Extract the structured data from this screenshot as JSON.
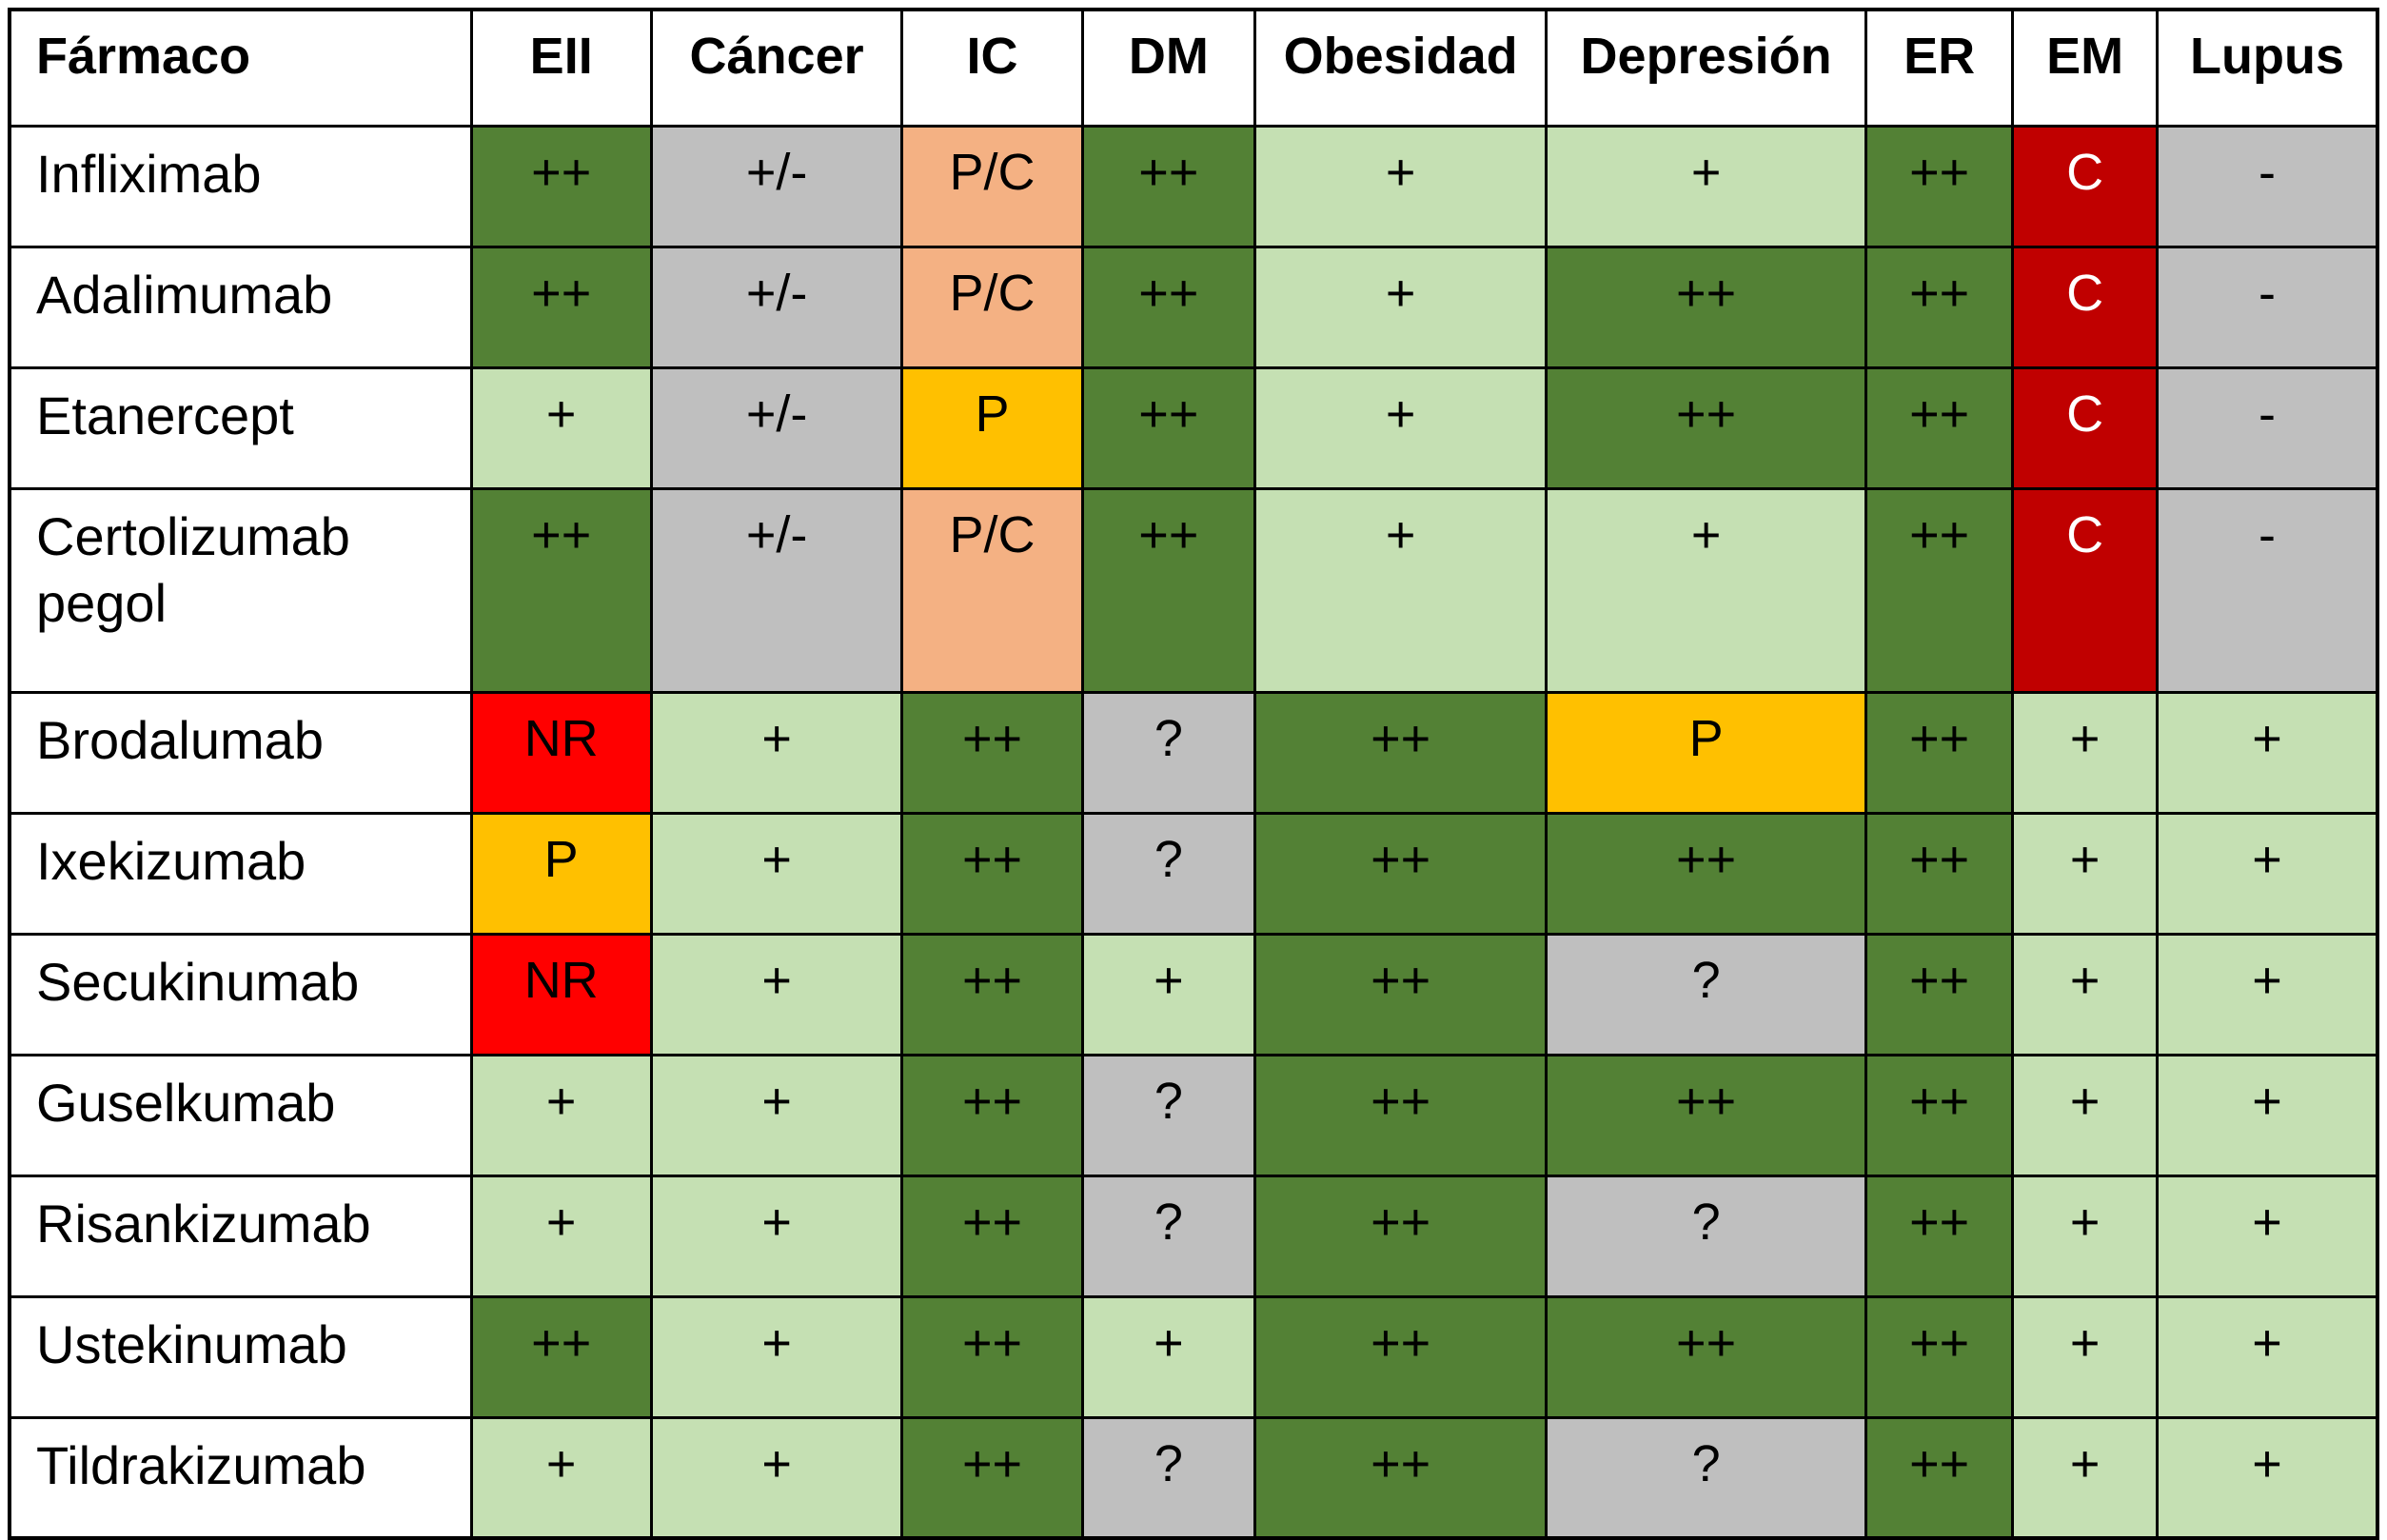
{
  "colors": {
    "dark_green": "#538135",
    "light_green": "#C5E0B3",
    "gray": "#BFBFBF",
    "orange": "#F4B183",
    "gold": "#FFC000",
    "red": "#FF0000",
    "dark_red": "#C00000",
    "border": "#000000",
    "white_text": "#FFFFFF",
    "black_text": "#000000"
  },
  "chart_data": {
    "type": "table",
    "columns": [
      "Fármaco",
      "EII",
      "Cáncer",
      "IC",
      "DM",
      "Obesidad",
      "Depresión",
      "ER",
      "EM",
      "Lupus"
    ],
    "rows": [
      {
        "drug": "Infliximab",
        "cells": [
          {
            "v": "++",
            "bg": "dark_green"
          },
          {
            "v": "+/-",
            "bg": "gray"
          },
          {
            "v": "P/C",
            "bg": "orange"
          },
          {
            "v": "++",
            "bg": "dark_green"
          },
          {
            "v": "+",
            "bg": "light_green"
          },
          {
            "v": "+",
            "bg": "light_green"
          },
          {
            "v": "++",
            "bg": "dark_green"
          },
          {
            "v": "C",
            "bg": "dark_red",
            "fg": "white"
          },
          {
            "v": "-",
            "bg": "gray"
          }
        ]
      },
      {
        "drug": "Adalimumab",
        "cells": [
          {
            "v": "++",
            "bg": "dark_green"
          },
          {
            "v": "+/-",
            "bg": "gray"
          },
          {
            "v": "P/C",
            "bg": "orange"
          },
          {
            "v": "++",
            "bg": "dark_green"
          },
          {
            "v": "+",
            "bg": "light_green"
          },
          {
            "v": "++",
            "bg": "dark_green"
          },
          {
            "v": "++",
            "bg": "dark_green"
          },
          {
            "v": "C",
            "bg": "dark_red",
            "fg": "white"
          },
          {
            "v": "-",
            "bg": "gray"
          }
        ]
      },
      {
        "drug": "Etanercept",
        "cells": [
          {
            "v": "+",
            "bg": "light_green"
          },
          {
            "v": "+/-",
            "bg": "gray"
          },
          {
            "v": "P",
            "bg": "gold"
          },
          {
            "v": "++",
            "bg": "dark_green"
          },
          {
            "v": "+",
            "bg": "light_green"
          },
          {
            "v": "++",
            "bg": "dark_green"
          },
          {
            "v": "++",
            "bg": "dark_green"
          },
          {
            "v": "C",
            "bg": "dark_red",
            "fg": "white"
          },
          {
            "v": "-",
            "bg": "gray"
          }
        ]
      },
      {
        "drug": "Certolizumab pegol",
        "cells": [
          {
            "v": "++",
            "bg": "dark_green"
          },
          {
            "v": "+/-",
            "bg": "gray"
          },
          {
            "v": "P/C",
            "bg": "orange"
          },
          {
            "v": "++",
            "bg": "dark_green"
          },
          {
            "v": "+",
            "bg": "light_green"
          },
          {
            "v": "+",
            "bg": "light_green"
          },
          {
            "v": "++",
            "bg": "dark_green"
          },
          {
            "v": "C",
            "bg": "dark_red",
            "fg": "white"
          },
          {
            "v": "-",
            "bg": "gray"
          }
        ]
      },
      {
        "drug": "Brodalumab",
        "cells": [
          {
            "v": "NR",
            "bg": "red"
          },
          {
            "v": "+",
            "bg": "light_green"
          },
          {
            "v": "++",
            "bg": "dark_green"
          },
          {
            "v": "?",
            "bg": "gray"
          },
          {
            "v": "++",
            "bg": "dark_green"
          },
          {
            "v": "P",
            "bg": "gold"
          },
          {
            "v": "++",
            "bg": "dark_green"
          },
          {
            "v": "+",
            "bg": "light_green"
          },
          {
            "v": "+",
            "bg": "light_green"
          }
        ]
      },
      {
        "drug": "Ixekizumab",
        "cells": [
          {
            "v": "P",
            "bg": "gold"
          },
          {
            "v": "+",
            "bg": "light_green"
          },
          {
            "v": "++",
            "bg": "dark_green"
          },
          {
            "v": "?",
            "bg": "gray"
          },
          {
            "v": "++",
            "bg": "dark_green"
          },
          {
            "v": "++",
            "bg": "dark_green"
          },
          {
            "v": "++",
            "bg": "dark_green"
          },
          {
            "v": "+",
            "bg": "light_green"
          },
          {
            "v": "+",
            "bg": "light_green"
          }
        ]
      },
      {
        "drug": "Secukinumab",
        "cells": [
          {
            "v": "NR",
            "bg": "red"
          },
          {
            "v": "+",
            "bg": "light_green"
          },
          {
            "v": "++",
            "bg": "dark_green"
          },
          {
            "v": "+",
            "bg": "light_green"
          },
          {
            "v": "++",
            "bg": "dark_green"
          },
          {
            "v": "?",
            "bg": "gray"
          },
          {
            "v": "++",
            "bg": "dark_green"
          },
          {
            "v": "+",
            "bg": "light_green"
          },
          {
            "v": "+",
            "bg": "light_green"
          }
        ]
      },
      {
        "drug": "Guselkumab",
        "cells": [
          {
            "v": "+",
            "bg": "light_green"
          },
          {
            "v": "+",
            "bg": "light_green"
          },
          {
            "v": "++",
            "bg": "dark_green"
          },
          {
            "v": "?",
            "bg": "gray"
          },
          {
            "v": "++",
            "bg": "dark_green"
          },
          {
            "v": "++",
            "bg": "dark_green"
          },
          {
            "v": "++",
            "bg": "dark_green"
          },
          {
            "v": "+",
            "bg": "light_green"
          },
          {
            "v": "+",
            "bg": "light_green"
          }
        ]
      },
      {
        "drug": "Risankizumab",
        "cells": [
          {
            "v": "+",
            "bg": "light_green"
          },
          {
            "v": "+",
            "bg": "light_green"
          },
          {
            "v": "++",
            "bg": "dark_green"
          },
          {
            "v": "?",
            "bg": "gray"
          },
          {
            "v": "++",
            "bg": "dark_green"
          },
          {
            "v": "?",
            "bg": "gray"
          },
          {
            "v": "++",
            "bg": "dark_green"
          },
          {
            "v": "+",
            "bg": "light_green"
          },
          {
            "v": "+",
            "bg": "light_green"
          }
        ]
      },
      {
        "drug": "Ustekinumab",
        "cells": [
          {
            "v": "++",
            "bg": "dark_green"
          },
          {
            "v": "+",
            "bg": "light_green"
          },
          {
            "v": "++",
            "bg": "dark_green"
          },
          {
            "v": "+",
            "bg": "light_green"
          },
          {
            "v": "++",
            "bg": "dark_green"
          },
          {
            "v": "++",
            "bg": "dark_green"
          },
          {
            "v": "++",
            "bg": "dark_green"
          },
          {
            "v": "+",
            "bg": "light_green"
          },
          {
            "v": "+",
            "bg": "light_green"
          }
        ]
      },
      {
        "drug": "Tildrakizumab",
        "cells": [
          {
            "v": "+",
            "bg": "light_green"
          },
          {
            "v": "+",
            "bg": "light_green"
          },
          {
            "v": "++",
            "bg": "dark_green"
          },
          {
            "v": "?",
            "bg": "gray"
          },
          {
            "v": "++",
            "bg": "dark_green"
          },
          {
            "v": "?",
            "bg": "gray"
          },
          {
            "v": "++",
            "bg": "dark_green"
          },
          {
            "v": "+",
            "bg": "light_green"
          },
          {
            "v": "+",
            "bg": "light_green"
          }
        ]
      }
    ]
  }
}
